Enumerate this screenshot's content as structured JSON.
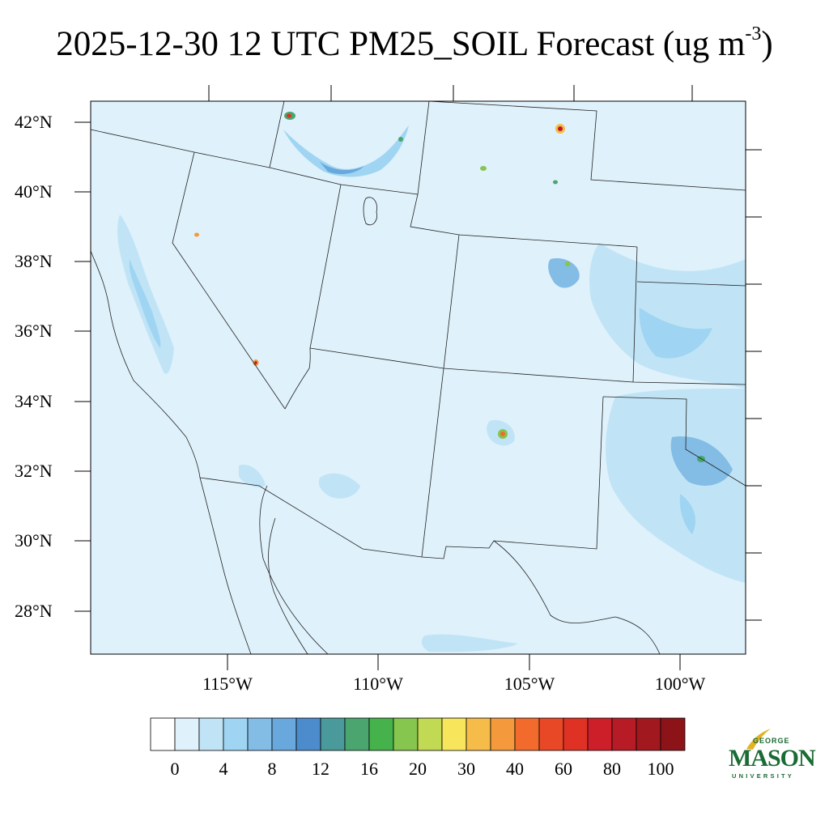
{
  "title": {
    "main": "2025-12-30 12 UTC PM25_SOIL Forecast (ug m",
    "sup": "-3",
    "close": ")"
  },
  "lat_labels": [
    "42°N",
    "40°N",
    "38°N",
    "36°N",
    "34°N",
    "32°N",
    "30°N",
    "28°N"
  ],
  "lon_labels": [
    "115°W",
    "110°W",
    "105°W",
    "100°W"
  ],
  "colorbar": {
    "colors": [
      "#ffffff",
      "#dff1fb",
      "#c0e4f6",
      "#9fd5f2",
      "#83bce5",
      "#68a8dd",
      "#4d8ccc",
      "#4a9a9b",
      "#4aa66e",
      "#45b24b",
      "#86c54e",
      "#c2d953",
      "#f7e65b",
      "#f6bc4a",
      "#f59a3c",
      "#f36b2c",
      "#e84826",
      "#df3224",
      "#cd1f2a",
      "#b71c26",
      "#a1191f",
      "#8c1419"
    ],
    "labels": [
      "0",
      "4",
      "8",
      "12",
      "16",
      "20",
      "30",
      "40",
      "60",
      "80",
      "100"
    ]
  },
  "logo": {
    "line1": "GEORGE",
    "line2": "MASON",
    "line3": "UNIVERSITY"
  },
  "colors": {
    "background_field": "#dff1fb",
    "light_band": "#c0e4f6",
    "mid_band": "#9fd5f2",
    "dark_band": "#83bce5",
    "logo_green": "#1b6b35",
    "logo_gold": "#e2b324"
  }
}
